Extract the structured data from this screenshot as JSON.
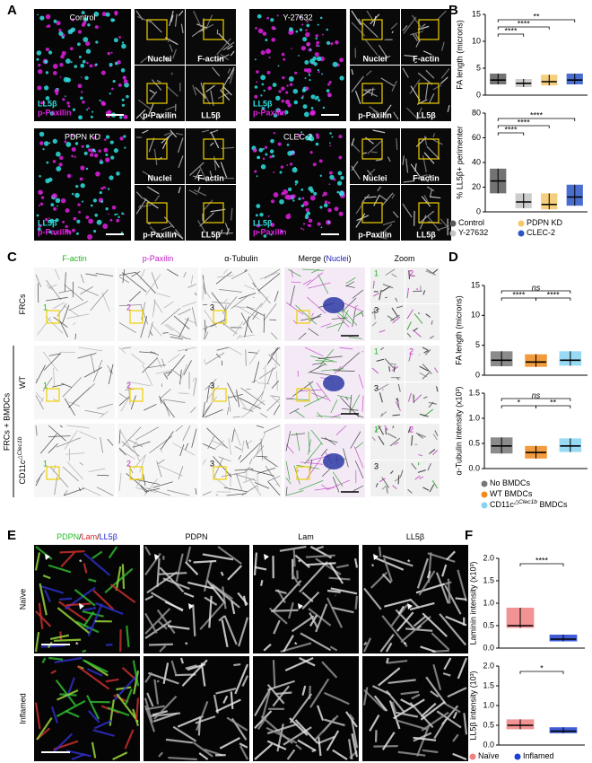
{
  "figure": {
    "panel_labels": [
      "A",
      "B",
      "C",
      "D",
      "E",
      "F"
    ],
    "a": {
      "conditions": [
        {
          "title": "Control",
          "stains": [
            "LL5β",
            "p-Paxilin"
          ],
          "tiles": [
            "Nuclei",
            "F-actin",
            "p-Paxilin",
            "LL5β"
          ]
        },
        {
          "title": "Y-27632",
          "stains": [
            "LL5β",
            "p-Paxilin"
          ],
          "tiles": [
            "Nuclei",
            "F-actin",
            "p-Paxilin",
            "LL5β"
          ]
        },
        {
          "title": "PDPN KD",
          "stains": [
            "LL5β",
            "p-Paxilin"
          ],
          "tiles": [
            "Nuclei",
            "F-actin",
            "p-Paxilin",
            "LL5β"
          ]
        },
        {
          "title": "CLEC-2",
          "stains": [
            "LL5β",
            "p-Paxilin"
          ],
          "tiles": [
            "Nuclei",
            "F-actin",
            "p-Paxilin",
            "LL5β"
          ]
        }
      ]
    },
    "b": {
      "legend": [
        {
          "parts": [
            {
              "text": "Control"
            }
          ],
          "color": "#5a5a5a"
        },
        {
          "parts": [
            {
              "text": "Y-27632"
            }
          ],
          "color": "#c4c4c4"
        },
        {
          "parts": [
            {
              "text": "PDPN KD"
            }
          ],
          "color": "#f3c766"
        },
        {
          "parts": [
            {
              "text": "CLEC-2"
            }
          ],
          "color": "#2a55c8"
        }
      ]
    },
    "c": {
      "columns": [
        [
          {
            "text": "F-actin",
            "color": "#22b522"
          }
        ],
        [
          {
            "text": "p-Paxilin",
            "color": "#c020c0"
          }
        ],
        [
          {
            "text": "α-Tubulin",
            "color": "#000000"
          }
        ],
        [
          {
            "text": "Merge (",
            "color": "#000000"
          },
          {
            "text": "Nuclei",
            "color": "#2020c0"
          },
          {
            "text": ")",
            "color": "#000000"
          }
        ],
        [
          {
            "text": "Zoom",
            "color": "#000000"
          }
        ]
      ],
      "rows": [
        [
          {
            "text": "FRCs"
          }
        ],
        [
          {
            "text": "WT"
          }
        ],
        [
          {
            "text": "CD11c"
          },
          {
            "text": "△Clec1b",
            "style": "sup"
          }
        ]
      ],
      "group": "FRCs + BMDCs",
      "zoom_labels": [
        {
          "text": "1",
          "color": "#22b522"
        },
        {
          "text": "2",
          "color": "#c020c0"
        },
        {
          "text": "3",
          "color": "#000000"
        }
      ]
    },
    "d": {
      "legend": [
        {
          "parts": [
            {
              "text": "No BMDCs"
            }
          ],
          "color": "#777777"
        },
        {
          "parts": [
            {
              "text": "WT BMDCs"
            }
          ],
          "color": "#f08a1c"
        },
        {
          "parts": [
            {
              "text": "CD11c"
            },
            {
              "text": "△Clec1b",
              "style": "sup"
            },
            {
              "text": " BMDCs"
            }
          ],
          "color": "#86d2f2"
        }
      ]
    },
    "e": {
      "columns": [
        [
          {
            "text": "PDPN",
            "color": "#22c022"
          },
          {
            "text": "/",
            "color": "#000000"
          },
          {
            "text": "Lam",
            "color": "#e02020"
          },
          {
            "text": "/",
            "color": "#000000"
          },
          {
            "text": "LL5β",
            "color": "#2020d0"
          }
        ],
        [
          {
            "text": "PDPN",
            "color": "#000000"
          }
        ],
        [
          {
            "text": "Lam",
            "color": "#000000"
          }
        ],
        [
          {
            "text": "LL5β",
            "color": "#000000"
          }
        ]
      ],
      "rows": [
        "Naïve",
        "Inflamed"
      ],
      "marker": "*"
    },
    "f": {
      "legend": [
        {
          "parts": [
            {
              "text": "Naïve"
            }
          ],
          "color": "#f08080"
        },
        {
          "parts": [
            {
              "text": "Inflamed"
            }
          ],
          "color": "#1f3fd0"
        }
      ]
    }
  },
  "chart_data": [
    {
      "type": "dotplot",
      "y_label": "FA length (microns)",
      "ylim": [
        0,
        15
      ],
      "yticks": [
        0,
        5,
        10,
        15
      ],
      "groups": [
        {
          "color": "#5a5a5a",
          "median": 2.8,
          "range": [
            2,
            4
          ]
        },
        {
          "color": "#c4c4c4",
          "median": 2.2,
          "range": [
            1.5,
            3
          ]
        },
        {
          "color": "#f3c766",
          "median": 2.5,
          "range": [
            1.8,
            3.8
          ]
        },
        {
          "color": "#2a55c8",
          "median": 2.8,
          "range": [
            2,
            4
          ]
        }
      ],
      "comparisons": [
        {
          "groups": [
            0,
            1
          ],
          "label": "****"
        },
        {
          "groups": [
            0,
            2
          ],
          "label": "****"
        },
        {
          "groups": [
            0,
            3
          ],
          "label": "**"
        }
      ]
    },
    {
      "type": "dotplot",
      "y_label": "% LL5β+ perimenter",
      "ylim": [
        0,
        80
      ],
      "yticks": [
        0,
        20,
        40,
        60,
        80
      ],
      "groups": [
        {
          "color": "#5a5a5a",
          "median": 25,
          "range": [
            15,
            35
          ]
        },
        {
          "color": "#c4c4c4",
          "median": 8,
          "range": [
            3,
            15
          ]
        },
        {
          "color": "#f3c766",
          "median": 6,
          "range": [
            2,
            15
          ]
        },
        {
          "color": "#2a55c8",
          "median": 12,
          "range": [
            5,
            22
          ]
        }
      ],
      "comparisons": [
        {
          "groups": [
            0,
            1
          ],
          "label": "****"
        },
        {
          "groups": [
            0,
            2
          ],
          "label": "****"
        },
        {
          "groups": [
            0,
            3
          ],
          "label": "****"
        }
      ]
    },
    {
      "type": "dotplot",
      "y_label": "FA length (microns)",
      "ylim": [
        0,
        15
      ],
      "yticks": [
        0,
        5,
        10,
        15
      ],
      "groups": [
        {
          "color": "#777777",
          "median": 2.5,
          "range": [
            1.5,
            4
          ]
        },
        {
          "color": "#f08a1c",
          "median": 2.2,
          "range": [
            1.4,
            3.5
          ]
        },
        {
          "color": "#86d2f2",
          "median": 2.5,
          "range": [
            1.6,
            4
          ]
        }
      ],
      "comparisons": [
        {
          "groups": [
            0,
            1
          ],
          "label": "****"
        },
        {
          "groups": [
            1,
            2
          ],
          "label": "****"
        },
        {
          "groups": [
            0,
            2
          ],
          "label": "ns"
        }
      ]
    },
    {
      "type": "dotplot",
      "y_label": "α-Tubulin intensity (x10³)",
      "ylim": [
        0,
        1.5
      ],
      "yticks": [
        {
          "value": 0,
          "label": "0.0"
        },
        0.5,
        {
          "value": 1,
          "label": "1.0"
        },
        1.5
      ],
      "groups": [
        {
          "color": "#777777",
          "median": 0.45,
          "range": [
            0.3,
            0.62
          ]
        },
        {
          "color": "#f08a1c",
          "median": 0.32,
          "range": [
            0.2,
            0.45
          ]
        },
        {
          "color": "#86d2f2",
          "median": 0.45,
          "range": [
            0.33,
            0.6
          ]
        }
      ],
      "comparisons": [
        {
          "groups": [
            0,
            1
          ],
          "label": "*"
        },
        {
          "groups": [
            1,
            2
          ],
          "label": "**"
        },
        {
          "groups": [
            0,
            2
          ],
          "label": "ns"
        }
      ]
    },
    {
      "type": "dotplot",
      "y_label": "Laminin intensity (x10³)",
      "ylim": [
        0,
        2
      ],
      "yticks": [
        {
          "value": 0,
          "label": "0.0"
        },
        0.5,
        {
          "value": 1,
          "label": "1.0"
        },
        1.5,
        {
          "value": 2,
          "label": "2.0"
        }
      ],
      "groups": [
        {
          "color": "#f08080",
          "median": 0.5,
          "range": [
            0.45,
            0.9
          ]
        },
        {
          "color": "#1f3fd0",
          "median": 0.2,
          "range": [
            0.15,
            0.3
          ]
        }
      ],
      "comparisons": [
        {
          "groups": [
            0,
            1
          ],
          "label": "****"
        }
      ]
    },
    {
      "type": "dotplot",
      "y_label": "LL5β intensity (10³)",
      "ylim": [
        0,
        2
      ],
      "yticks": [
        {
          "value": 0,
          "label": "0.0"
        },
        0.5,
        {
          "value": 1,
          "label": "1.0"
        },
        1.5,
        {
          "value": 2,
          "label": "2.0"
        }
      ],
      "groups": [
        {
          "color": "#f08080",
          "median": 0.5,
          "range": [
            0.4,
            0.65
          ]
        },
        {
          "color": "#1f3fd0",
          "median": 0.35,
          "range": [
            0.3,
            0.45
          ]
        }
      ],
      "comparisons": [
        {
          "groups": [
            0,
            1
          ],
          "label": "*"
        }
      ]
    }
  ]
}
